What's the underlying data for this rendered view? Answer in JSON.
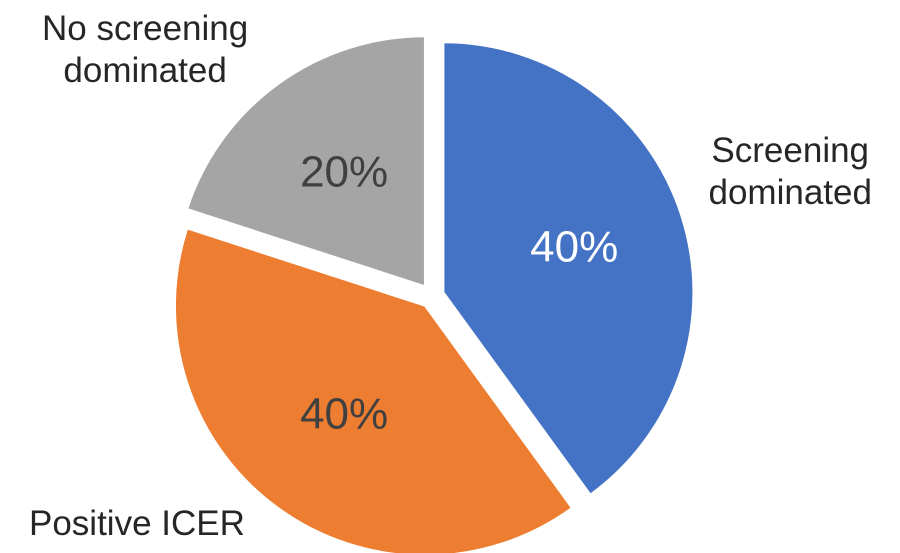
{
  "chart_data": {
    "type": "pie",
    "categories": [
      "Screening\ndominated",
      "Positive ICER",
      "No screening\ndominated"
    ],
    "values": [
      40,
      40,
      20
    ],
    "value_labels": [
      "40%",
      "40%",
      "20%"
    ],
    "colors": [
      "#4472c4",
      "#ed7d31",
      "#a5a5a5"
    ]
  }
}
